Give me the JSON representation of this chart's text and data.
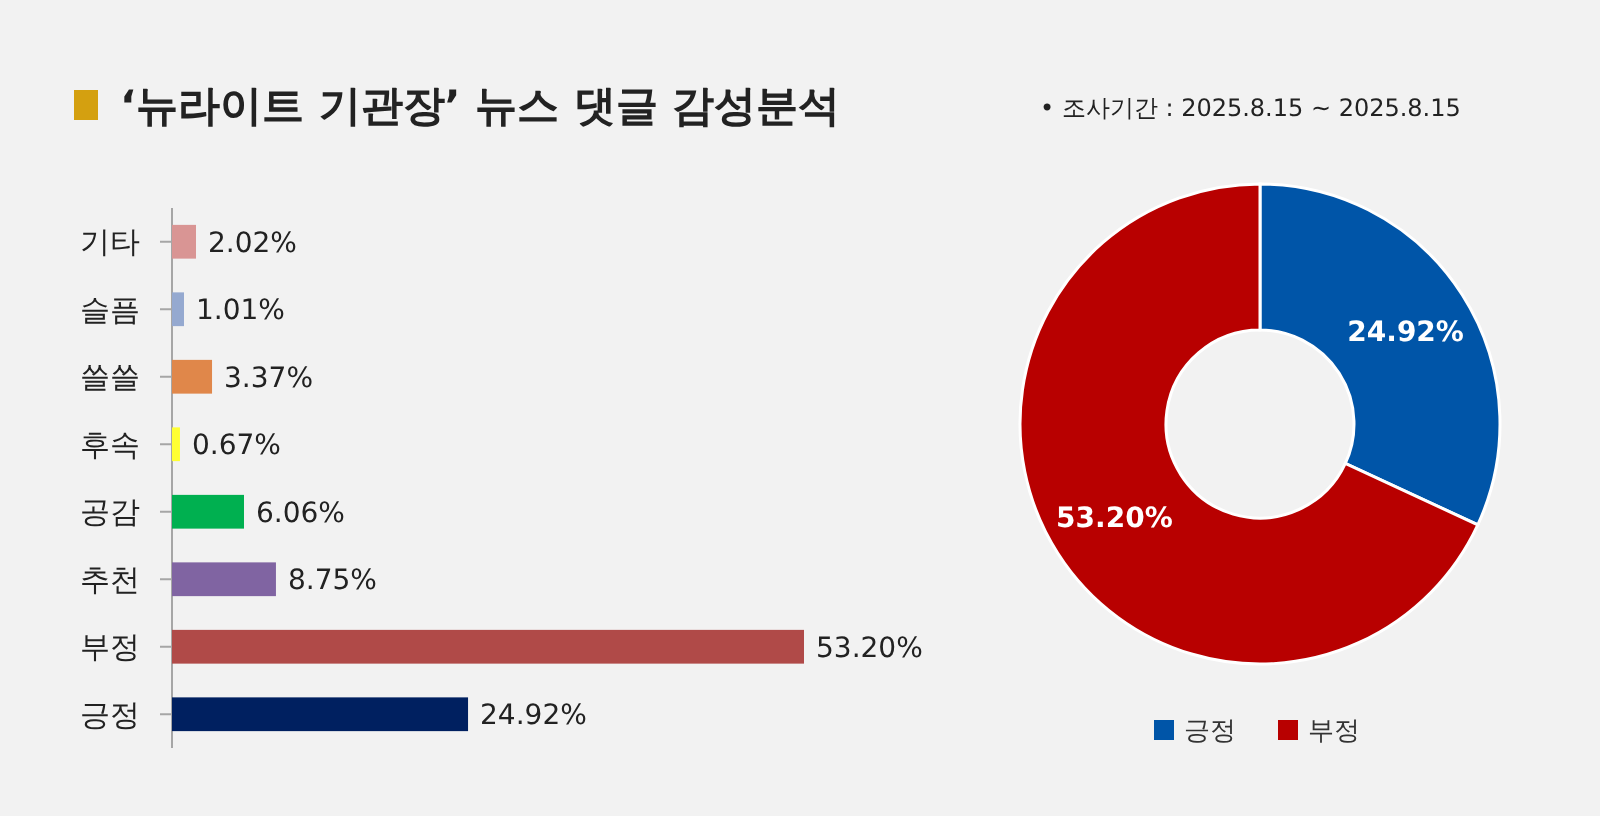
{
  "chart_data": [
    {
      "type": "bar",
      "orientation": "horizontal",
      "title": "‘뉴라이트 기관장’ 뉴스 댓글 감성분석",
      "categories": [
        "기타",
        "슬픔",
        "쓸쓸",
        "후속",
        "공감",
        "추천",
        "부정",
        "긍정"
      ],
      "values": [
        2.02,
        1.01,
        3.37,
        0.67,
        6.06,
        8.75,
        53.2,
        24.92
      ],
      "colors": [
        "#d99594",
        "#95a9d0",
        "#e0874a",
        "#ffff33",
        "#00b050",
        "#8064a2",
        "#b04a48",
        "#002060"
      ],
      "data_labels": true,
      "value_labels": [
        "2.02%",
        "1.01%",
        "3.37%",
        "0.67%",
        "6.06%",
        "8.75%",
        "53.20%",
        "24.92%"
      ],
      "grid": false,
      "legend": false
    },
    {
      "type": "donut",
      "categories": [
        "긍정",
        "부정"
      ],
      "values": [
        24.92,
        53.2
      ],
      "colors": [
        "#0055a8",
        "#b80000"
      ],
      "value_labels": [
        "24.92%",
        "53.20%"
      ],
      "legend": "bottom",
      "annotations": [
        "•     조사기간 : 2025.8.15 ~ 2025.8.15"
      ]
    }
  ]
}
